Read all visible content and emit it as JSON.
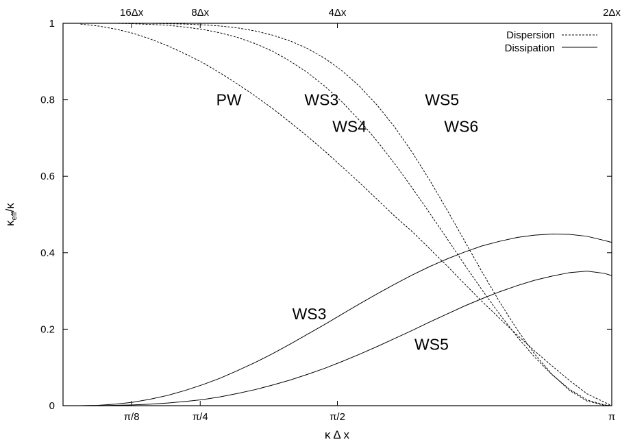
{
  "chart_data": {
    "type": "line",
    "xlabel": "κ Δ x",
    "ylabel": "κeff/κ",
    "ylabel_main": "κ",
    "ylabel_sub": "eff",
    "ylabel_tail": "/κ",
    "xlim": [
      0,
      3.14159265
    ],
    "ylim": [
      0,
      1
    ],
    "grid": false,
    "legend_position": "top-right",
    "x_ticks_bottom": [
      {
        "value": 0.39269908,
        "label": "π/8"
      },
      {
        "value": 0.78539816,
        "label": "π/4"
      },
      {
        "value": 1.57079633,
        "label": "π/2"
      },
      {
        "value": 3.14159265,
        "label": "π"
      }
    ],
    "x_ticks_top": [
      {
        "value": 0.39269908,
        "label": "16Δx"
      },
      {
        "value": 0.78539816,
        "label": "8Δx"
      },
      {
        "value": 1.57079633,
        "label": "4Δx"
      },
      {
        "value": 3.14159265,
        "label": "2Δx"
      }
    ],
    "y_ticks": [
      {
        "value": 0,
        "label": "0"
      },
      {
        "value": 0.2,
        "label": "0.2"
      },
      {
        "value": 0.4,
        "label": "0.4"
      },
      {
        "value": 0.6,
        "label": "0.6"
      },
      {
        "value": 0.8,
        "label": "0.8"
      },
      {
        "value": 1,
        "label": "1"
      }
    ],
    "legend": [
      {
        "label": "Dispersion",
        "style": "dashed"
      },
      {
        "label": "Dissipation",
        "style": "solid"
      }
    ],
    "x": [
      0.1,
      0.2,
      0.3,
      0.4,
      0.5,
      0.6,
      0.7,
      0.8,
      0.9,
      1.0,
      1.1,
      1.2,
      1.3,
      1.4,
      1.5,
      1.6,
      1.7,
      1.8,
      1.9,
      2.0,
      2.1,
      2.2,
      2.3,
      2.4,
      2.5,
      2.6,
      2.7,
      2.8,
      2.9,
      3.0,
      3.1,
      3.14159265
    ],
    "series": [
      {
        "style": "dashed",
        "values": [
          0.998,
          0.993,
          0.985,
          0.974,
          0.959,
          0.941,
          0.92,
          0.897,
          0.87,
          0.841,
          0.81,
          0.777,
          0.741,
          0.704,
          0.665,
          0.624,
          0.582,
          0.539,
          0.495,
          0.455,
          0.41,
          0.365,
          0.318,
          0.272,
          0.228,
          0.185,
          0.143,
          0.104,
          0.066,
          0.031,
          0.009,
          0.0
        ]
      },
      {
        "style": "dashed",
        "values": [
          1.0,
          1.0,
          1.0,
          0.999,
          0.997,
          0.995,
          0.99,
          0.984,
          0.975,
          0.963,
          0.947,
          0.927,
          0.901,
          0.871,
          0.835,
          0.793,
          0.745,
          0.691,
          0.632,
          0.569,
          0.503,
          0.436,
          0.368,
          0.302,
          0.239,
          0.18,
          0.127,
          0.081,
          0.043,
          0.015,
          0.002,
          0.0
        ]
      },
      {
        "style": "dashed",
        "values": [
          1.0,
          1.0,
          1.0,
          1.0,
          1.0,
          0.999,
          0.998,
          0.996,
          0.993,
          0.988,
          0.98,
          0.969,
          0.954,
          0.934,
          0.908,
          0.875,
          0.834,
          0.785,
          0.728,
          0.662,
          0.589,
          0.511,
          0.43,
          0.349,
          0.271,
          0.199,
          0.135,
          0.082,
          0.04,
          0.012,
          0.001,
          0.0
        ]
      },
      {
        "style": "solid",
        "values": [
          0.0,
          0.001,
          0.004,
          0.009,
          0.017,
          0.027,
          0.04,
          0.055,
          0.072,
          0.092,
          0.113,
          0.136,
          0.161,
          0.187,
          0.213,
          0.24,
          0.267,
          0.293,
          0.318,
          0.342,
          0.364,
          0.384,
          0.402,
          0.418,
          0.43,
          0.44,
          0.446,
          0.449,
          0.448,
          0.443,
          0.432,
          0.427
        ]
      },
      {
        "style": "solid",
        "values": [
          0.0,
          0.0,
          0.001,
          0.002,
          0.004,
          0.007,
          0.011,
          0.016,
          0.023,
          0.032,
          0.042,
          0.054,
          0.067,
          0.082,
          0.098,
          0.116,
          0.135,
          0.155,
          0.176,
          0.197,
          0.219,
          0.24,
          0.261,
          0.28,
          0.298,
          0.314,
          0.328,
          0.339,
          0.348,
          0.352,
          0.346,
          0.34
        ]
      }
    ],
    "annotations": [
      {
        "text": "PW",
        "x": 0.95,
        "y": 0.8
      },
      {
        "text": "WS3",
        "x": 1.48,
        "y": 0.8
      },
      {
        "text": "WS4",
        "x": 1.64,
        "y": 0.73
      },
      {
        "text": "WS5",
        "x": 2.17,
        "y": 0.8
      },
      {
        "text": "WS6",
        "x": 2.28,
        "y": 0.73
      },
      {
        "text": "WS3",
        "x": 1.41,
        "y": 0.24
      },
      {
        "text": "WS5",
        "x": 2.11,
        "y": 0.16
      }
    ]
  }
}
